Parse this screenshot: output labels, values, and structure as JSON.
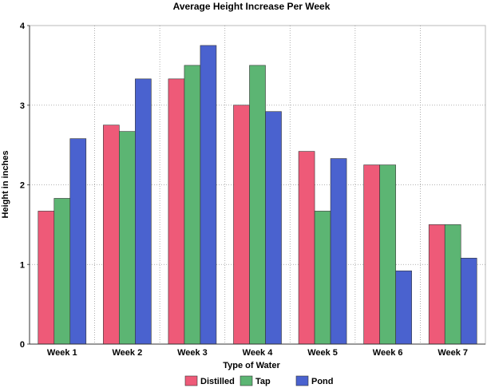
{
  "chart_data": {
    "type": "bar",
    "title": "Average Height Increase Per Week",
    "xlabel": "Type of Water",
    "ylabel": "Height in inches",
    "categories": [
      "Week 1",
      "Week 2",
      "Week 3",
      "Week 4",
      "Week 5",
      "Week 6",
      "Week 7"
    ],
    "ylim": [
      0,
      4
    ],
    "yticks": [
      "0",
      "1",
      "2",
      "3",
      "4"
    ],
    "grid": true,
    "legend_position": "bottom",
    "series": [
      {
        "name": "Distilled",
        "color": "#ee5a78",
        "values": [
          1.67,
          2.75,
          3.33,
          3.0,
          2.42,
          2.25,
          1.5
        ]
      },
      {
        "name": "Tap",
        "color": "#5cb573",
        "values": [
          1.83,
          2.67,
          3.5,
          3.5,
          1.67,
          2.25,
          1.5
        ]
      },
      {
        "name": "Pond",
        "color": "#4a62cf",
        "values": [
          2.58,
          3.33,
          3.75,
          2.92,
          2.33,
          0.92,
          1.08
        ]
      }
    ]
  }
}
